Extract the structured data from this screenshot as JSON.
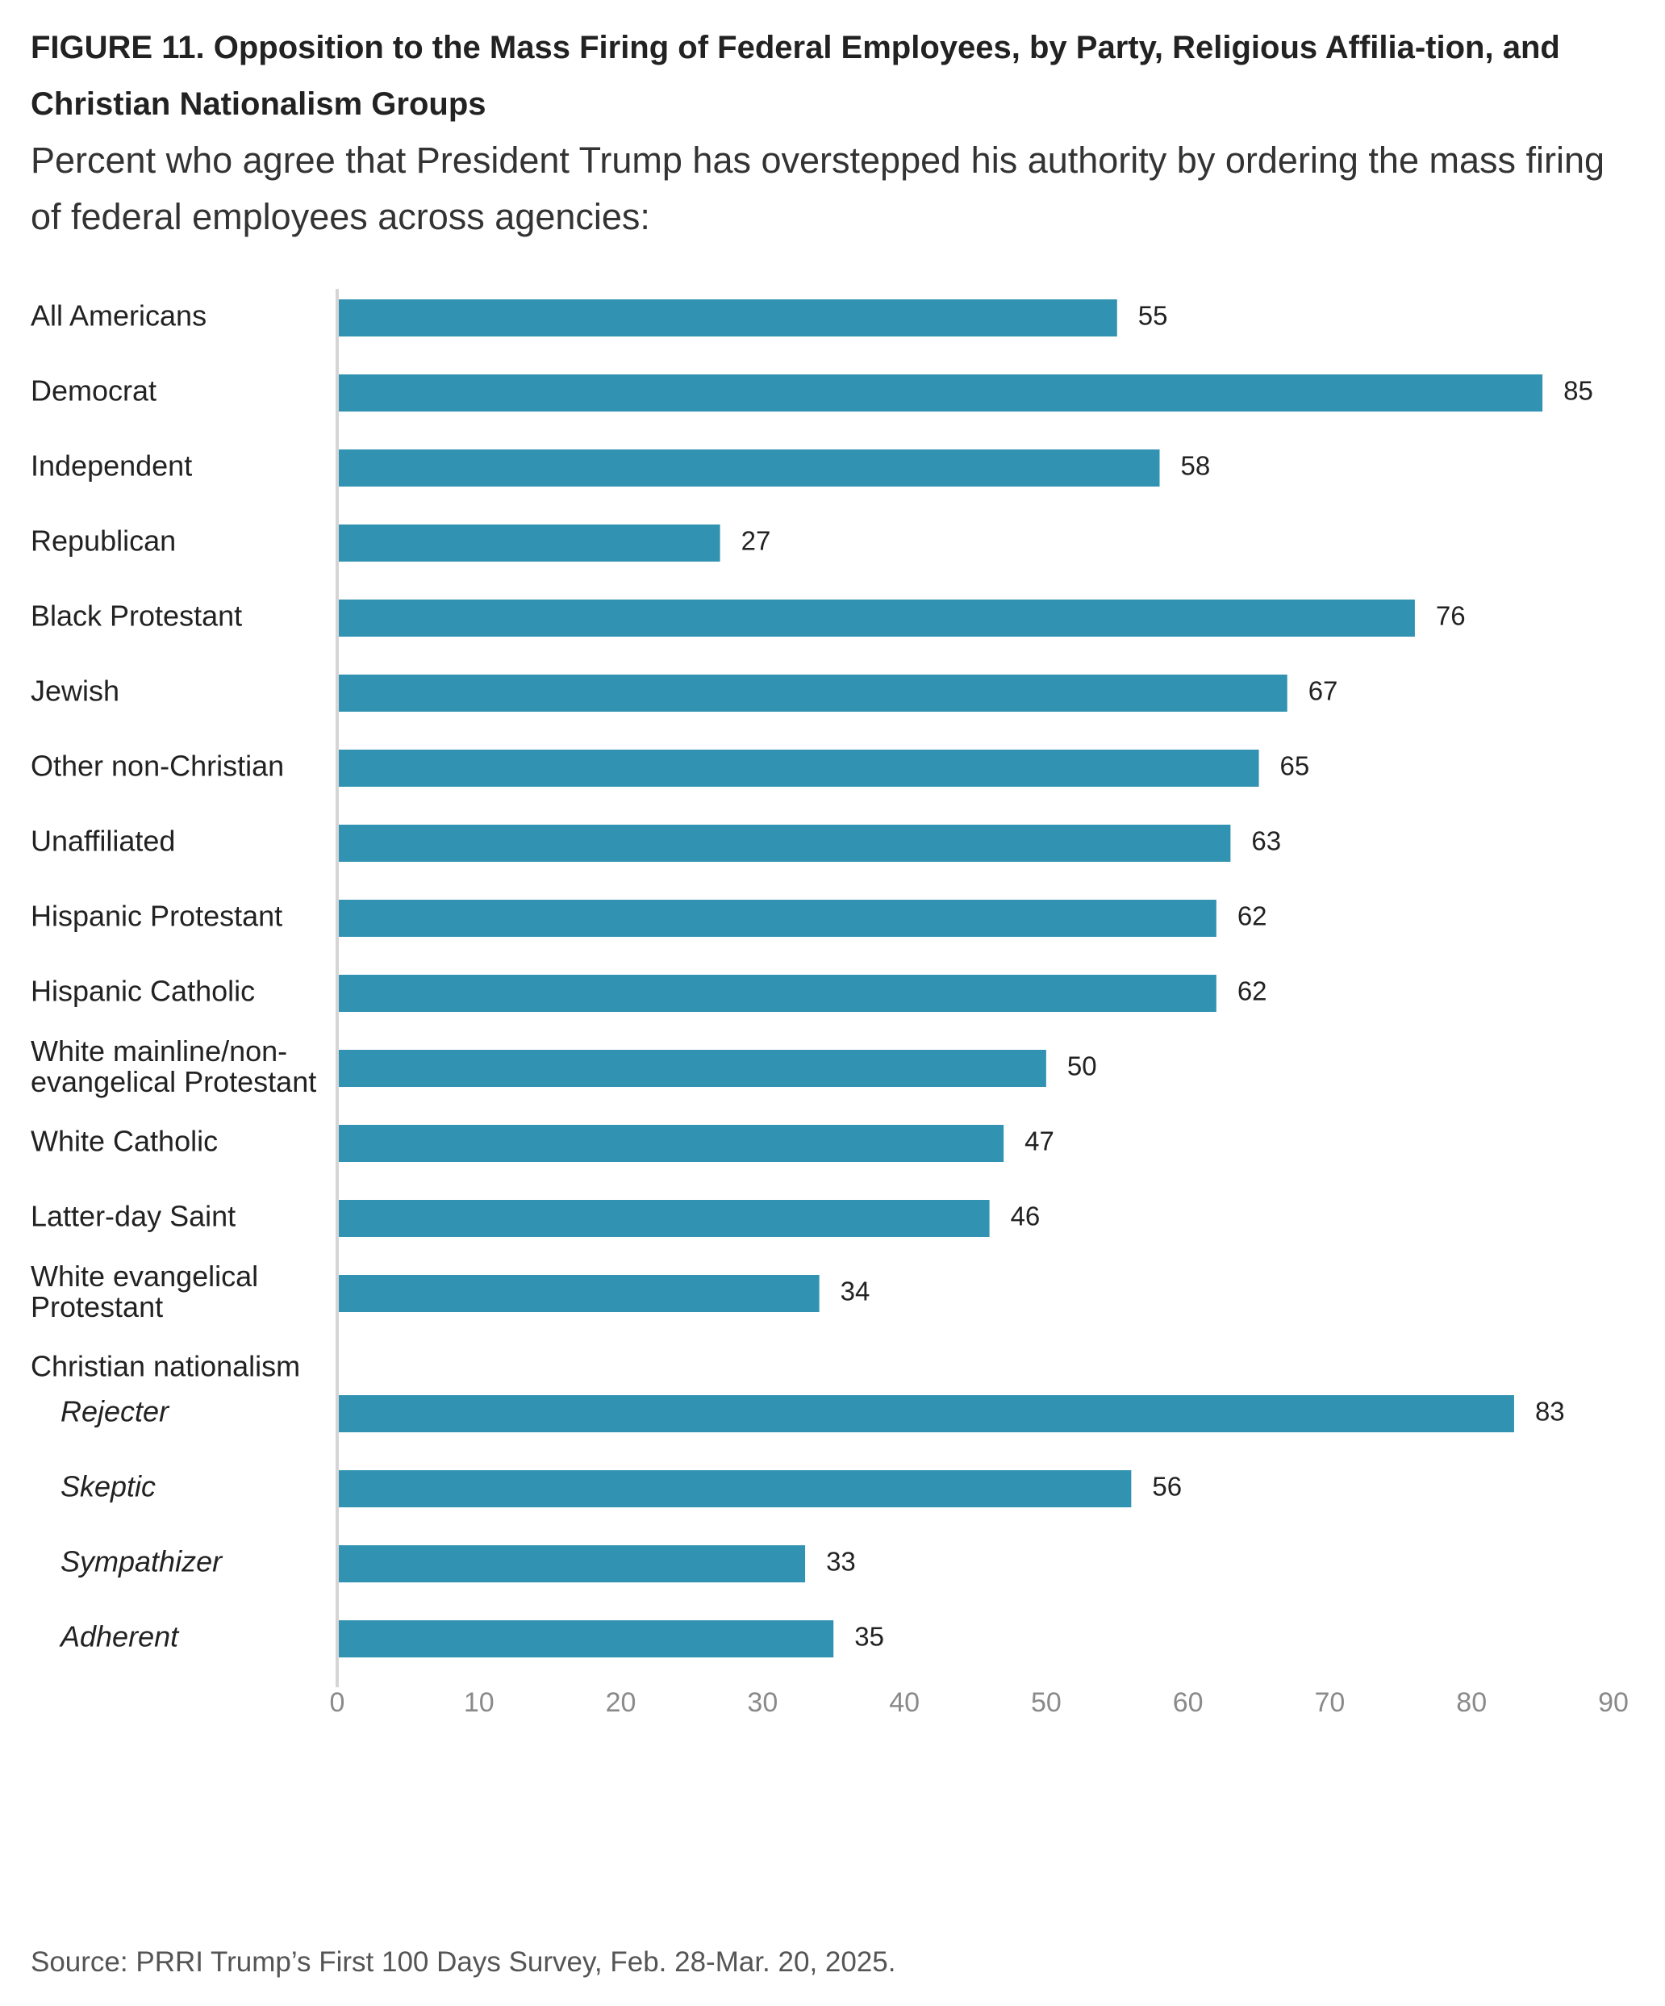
{
  "figure": {
    "title": "FIGURE 11.  Opposition to the Mass Firing of Federal Employees, by Party, Religious Affilia-tion, and Christian Nationalism Groups",
    "subtitle": "Percent who agree that President Trump has overstepped his authority by ordering the mass firing of federal employees across agencies:",
    "source": "Source: PRRI Trump’s First 100 Days Survey, Feb. 28-Mar. 20, 2025."
  },
  "chart_data": {
    "type": "bar",
    "orientation": "horizontal",
    "title": "FIGURE 11.  Opposition to the Mass Firing of Federal Employees, by Party, Religious Affilia-tion, and Christian Nationalism Groups",
    "subtitle": "Percent who agree that President Trump has overstepped his authority by ordering the mass firing of federal employees across agencies:",
    "xlabel": "",
    "ylabel": "",
    "xlim": [
      0,
      90
    ],
    "xticks": [
      0,
      10,
      20,
      30,
      40,
      50,
      60,
      70,
      80,
      90
    ],
    "grid": false,
    "bar_color": "#3193b1",
    "groups": [
      {
        "label": "",
        "rows": [
          {
            "label": "All Americans",
            "value": 55
          }
        ]
      },
      {
        "label": "",
        "rows": [
          {
            "label": "Democrat",
            "value": 85
          },
          {
            "label": "Independent",
            "value": 58
          },
          {
            "label": "Republican",
            "value": 27
          }
        ]
      },
      {
        "label": "",
        "rows": [
          {
            "label": "Black Protestant",
            "value": 76
          },
          {
            "label": "Jewish",
            "value": 67
          },
          {
            "label": "Other non-Christian",
            "value": 65
          },
          {
            "label": "Unaffiliated",
            "value": 63
          },
          {
            "label": "Hispanic Protestant",
            "value": 62
          },
          {
            "label": "Hispanic Catholic",
            "value": 62
          },
          {
            "label": "White mainline/non-evangelical Protestant",
            "lines": [
              "White mainline/non-",
              "evangelical Protestant"
            ],
            "value": 50
          },
          {
            "label": "White Catholic",
            "value": 47
          },
          {
            "label": "Latter-day Saint",
            "value": 46
          },
          {
            "label": "White evangelical Protestant",
            "lines": [
              "White evangelical",
              "Protestant"
            ],
            "value": 34
          }
        ]
      },
      {
        "label": "Christian nationalism",
        "italic": true,
        "rows": [
          {
            "label": "Rejecter",
            "value": 83
          },
          {
            "label": "Skeptic",
            "value": 56
          },
          {
            "label": "Sympathizer",
            "value": 33
          },
          {
            "label": "Adherent",
            "value": 35
          }
        ]
      }
    ]
  }
}
